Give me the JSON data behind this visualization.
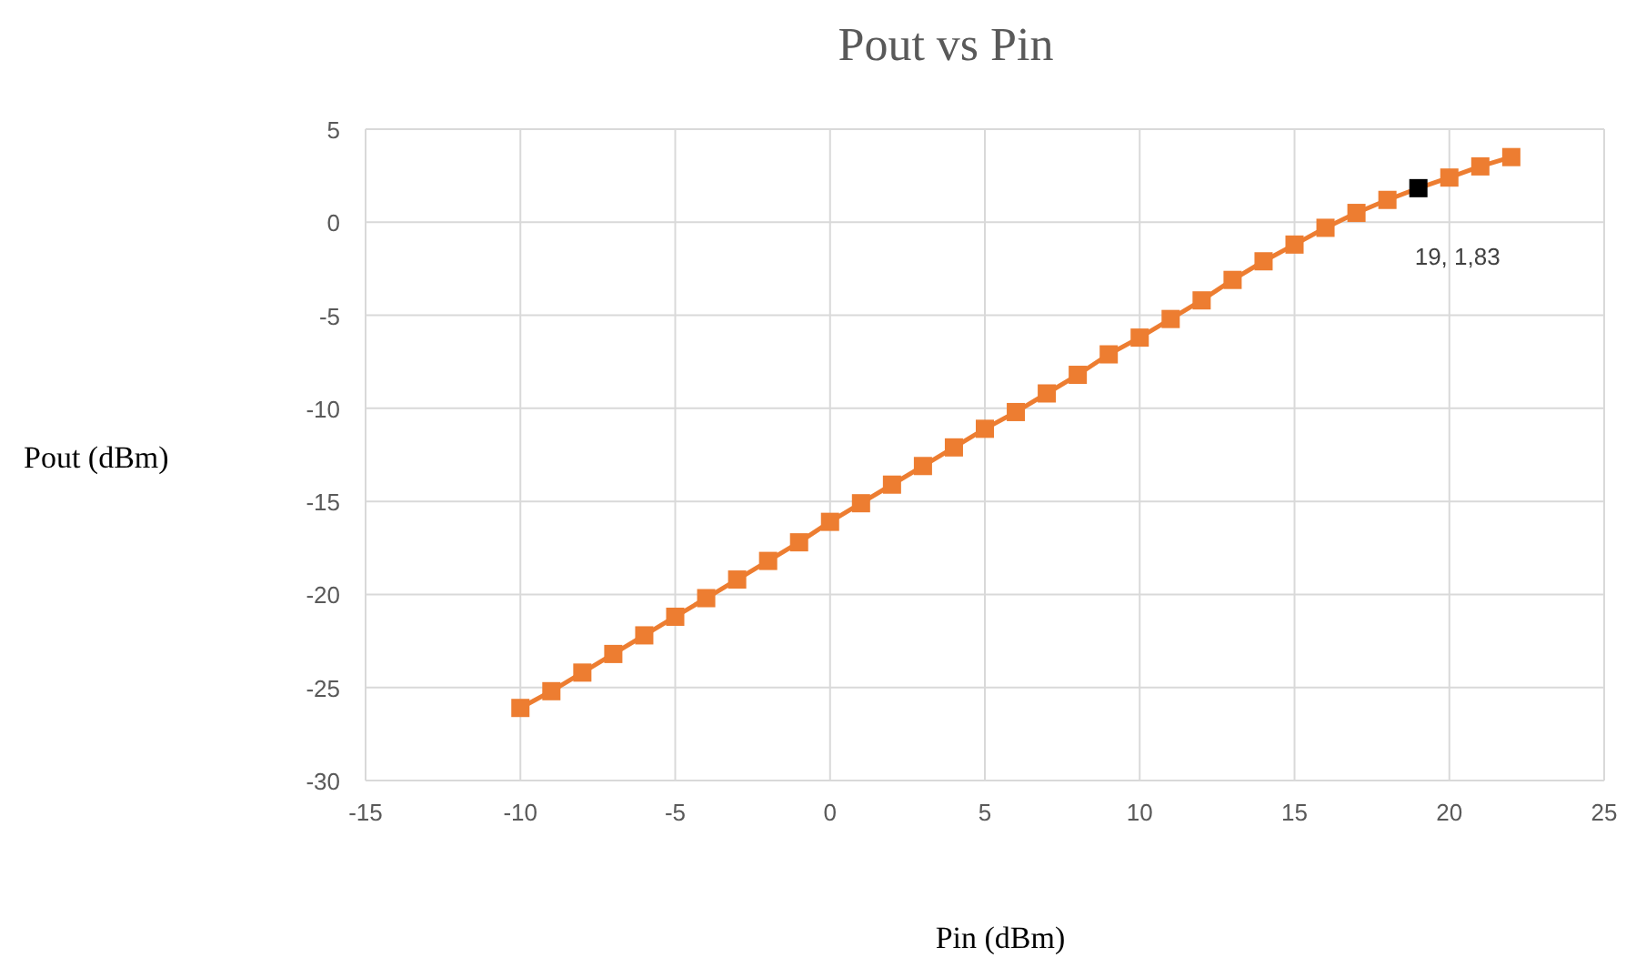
{
  "chart_data": {
    "type": "line",
    "title": "Pout vs Pin",
    "xlabel": "Pin (dBm)",
    "ylabel": "Pout (dBm)",
    "x": [
      -10,
      -9,
      -8,
      -7,
      -6,
      -5,
      -4,
      -3,
      -2,
      -1,
      0,
      1,
      2,
      3,
      4,
      5,
      6,
      7,
      8,
      9,
      10,
      11,
      12,
      13,
      14,
      15,
      16,
      17,
      18,
      19,
      20,
      21,
      22
    ],
    "series": [
      {
        "color": "#ed7d31",
        "colors": [
          "#ed7d31",
          "#ed7d31",
          "#ed7d31",
          "#ed7d31",
          "#ed7d31",
          "#ed7d31",
          "#ed7d31",
          "#ed7d31",
          "#ed7d31",
          "#ed7d31",
          "#ed7d31",
          "#ed7d31",
          "#ed7d31",
          "#ed7d31",
          "#ed7d31",
          "#ed7d31",
          "#ed7d31",
          "#ed7d31",
          "#ed7d31",
          "#ed7d31",
          "#ed7d31",
          "#ed7d31",
          "#ed7d31",
          "#ed7d31",
          "#ed7d31",
          "#ed7d31",
          "#ed7d31",
          "#ed7d31",
          "#ed7d31",
          "#000000",
          "#ed7d31",
          "#ed7d31",
          "#ed7d31"
        ],
        "values": [
          -26.1,
          -25.2,
          -24.2,
          -23.2,
          -22.2,
          -21.2,
          -20.2,
          -19.2,
          -18.2,
          -17.2,
          -16.1,
          -15.1,
          -14.1,
          -13.1,
          -12.1,
          -11.1,
          -10.2,
          -9.2,
          -8.2,
          -7.1,
          -6.2,
          -5.2,
          -4.2,
          -3.1,
          -2.1,
          -1.2,
          -0.3,
          0.5,
          1.2,
          1.83,
          2.4,
          3.0,
          3.5
        ]
      }
    ],
    "annotations": [
      {
        "text": "19, 1,83",
        "x": 19,
        "y": 1.83
      }
    ],
    "xlim": [
      -15,
      25
    ],
    "xticks": [
      -15,
      -10,
      -5,
      0,
      5,
      10,
      15,
      20,
      25
    ],
    "ylim": [
      -30,
      5
    ],
    "yticks": [
      -30,
      -25,
      -20,
      -15,
      -10,
      -5,
      0,
      5
    ],
    "grid": true,
    "marker": "square",
    "line_style": "solid"
  }
}
